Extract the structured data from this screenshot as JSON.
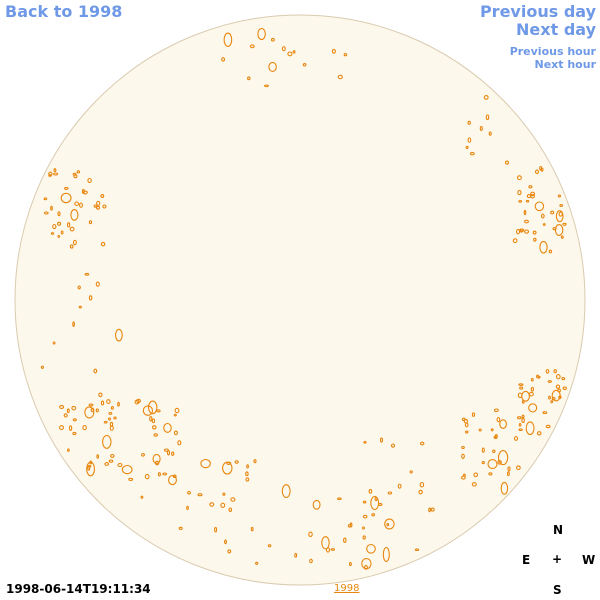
{
  "nav": {
    "back": "Back to 1998",
    "previous_day": "Previous day",
    "next_day": "Next day",
    "previous_hour": "Previous hour",
    "next_hour": "Next hour"
  },
  "timestamp": "1998-06-14T19:11:34",
  "year_link": "1998",
  "compass": {
    "north": "N",
    "east": "E",
    "center": "+",
    "west": "W",
    "south": "S"
  },
  "colors": {
    "disk_fill": "#fdf8ec",
    "disk_edge": "#d9cbb0",
    "contour": "#e8860e",
    "nav": "#6f99e6"
  }
}
